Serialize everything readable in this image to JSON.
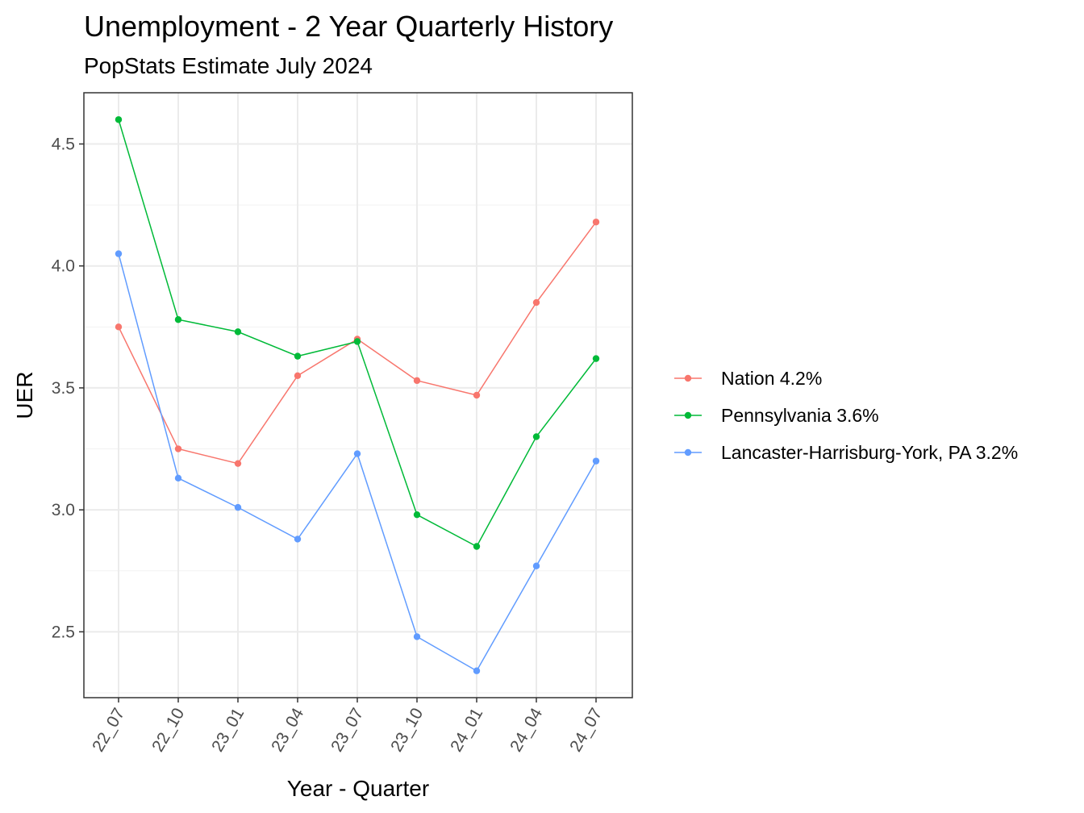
{
  "chart_data": {
    "type": "line",
    "title": "Unemployment - 2 Year Quarterly History",
    "subtitle": "PopStats Estimate July 2024",
    "xlabel": "Year - Quarter",
    "ylabel": "UER",
    "categories": [
      "22_07",
      "22_10",
      "23_01",
      "23_04",
      "23_07",
      "23_10",
      "24_01",
      "24_04",
      "24_07"
    ],
    "ylim": [
      2.23,
      4.71
    ],
    "yticks": [
      2.5,
      3.0,
      3.5,
      4.0,
      4.5
    ],
    "ytick_labels": [
      "2.5",
      "3.0",
      "3.5",
      "4.0",
      "4.5"
    ],
    "grid": true,
    "legend_position": "right",
    "series": [
      {
        "name": "Nation 4.2%",
        "color": "#F8766D",
        "values": [
          3.75,
          3.25,
          3.19,
          3.55,
          3.7,
          3.53,
          3.47,
          3.85,
          4.18
        ]
      },
      {
        "name": "Pennsylvania 3.6%",
        "color": "#00BA38",
        "values": [
          4.6,
          3.78,
          3.73,
          3.63,
          3.69,
          2.98,
          2.85,
          3.3,
          3.62
        ]
      },
      {
        "name": "Lancaster-Harrisburg-York, PA 3.2%",
        "color": "#619CFF",
        "values": [
          4.05,
          3.13,
          3.01,
          2.88,
          3.23,
          2.48,
          2.34,
          2.77,
          3.2
        ]
      }
    ]
  }
}
